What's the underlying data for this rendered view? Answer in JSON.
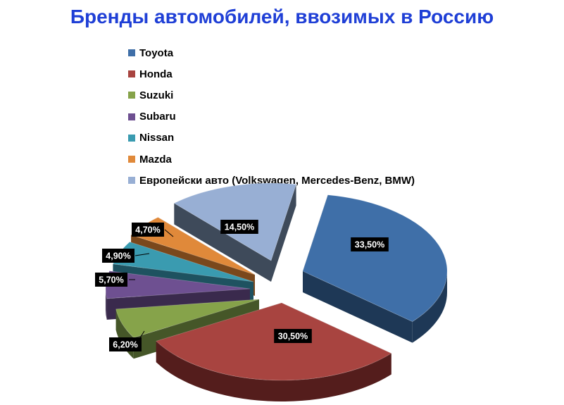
{
  "chart_data": {
    "type": "pie",
    "title": "Бренды автомобилей, ввозимых в Россию",
    "legend_position": "top",
    "slices": [
      {
        "name": "Toyota",
        "value": 33.5,
        "label": "33,50%",
        "color": "#3f6fa8",
        "side": "#1e3856"
      },
      {
        "name": "Honda",
        "value": 30.5,
        "label": "30,50%",
        "color": "#a84440",
        "side": "#541d1c"
      },
      {
        "name": "Suzuki",
        "value": 6.2,
        "label": "6,20%",
        "color": "#86a34a",
        "side": "#455628"
      },
      {
        "name": "Subaru",
        "value": 5.7,
        "label": "5,70%",
        "color": "#6e5091",
        "side": "#3a2a4d"
      },
      {
        "name": "Nissan",
        "value": 4.9,
        "label": "4,90%",
        "color": "#3a9bb0",
        "side": "#1e5260"
      },
      {
        "name": "Mazda",
        "value": 4.7,
        "label": "4,70%",
        "color": "#e0893a",
        "side": "#7a481c"
      },
      {
        "name": "Европейски авто (Volkswagen, Mercedes-Benz, BMW)",
        "value": 14.5,
        "label": "14,50%",
        "color": "#98afd4",
        "side": "#3e4a5a"
      }
    ]
  }
}
